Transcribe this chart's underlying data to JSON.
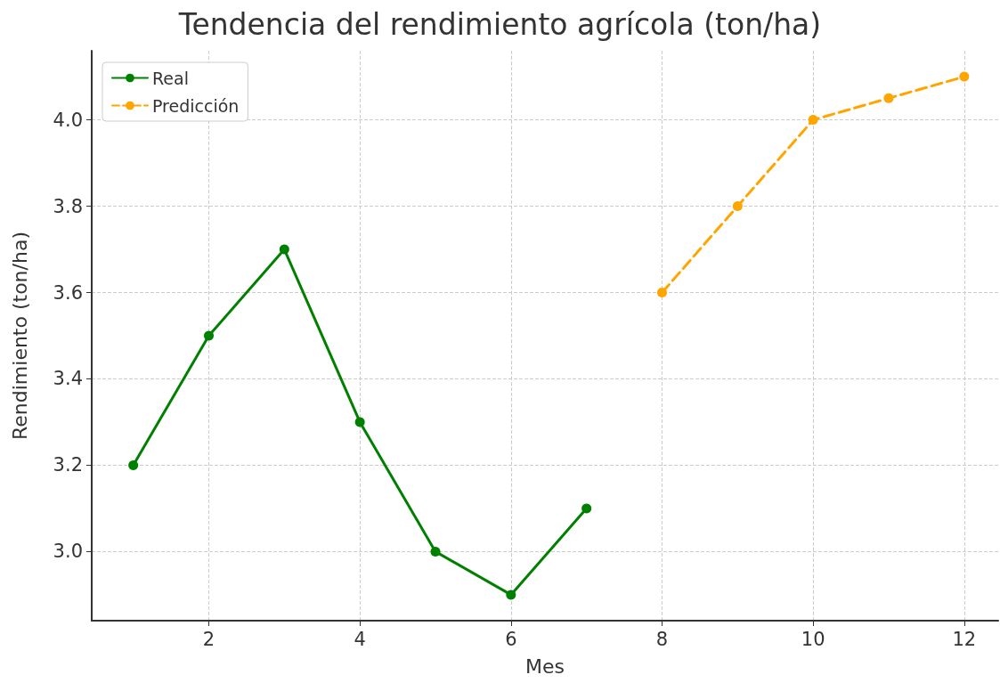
{
  "chart_data": {
    "type": "line",
    "title": "Tendencia del rendimiento agrícola (ton/ha)",
    "xlabel": "Mes",
    "ylabel": "Rendimiento (ton/ha)",
    "series": [
      {
        "name": "Real",
        "color": "#008000",
        "x": [
          1,
          2,
          3,
          4,
          5,
          6,
          7
        ],
        "values": [
          3.2,
          3.5,
          3.7,
          3.3,
          3.0,
          2.9,
          3.1
        ],
        "line_style": "solid"
      },
      {
        "name": "Predicción",
        "color": "#ffa500",
        "x": [
          8,
          9,
          10,
          11,
          12
        ],
        "values": [
          3.6,
          3.8,
          4.0,
          4.05,
          4.1
        ],
        "line_style": "dashed"
      }
    ],
    "xlim": [
      0.45,
      12.45
    ],
    "xticks": [
      2,
      4,
      6,
      8,
      10,
      12
    ],
    "ylim": [
      2.84,
      4.16
    ],
    "yticks": [
      {
        "value": 3,
        "label": "3.0"
      },
      {
        "value": 3.2,
        "label": "3.2"
      },
      {
        "value": 3.4,
        "label": "3.4"
      },
      {
        "value": 3.6,
        "label": "3.6"
      },
      {
        "value": 3.8,
        "label": "3.8"
      },
      {
        "value": 4,
        "label": "4.0"
      }
    ],
    "grid": true,
    "legend": "top left",
    "marker": "circle"
  }
}
